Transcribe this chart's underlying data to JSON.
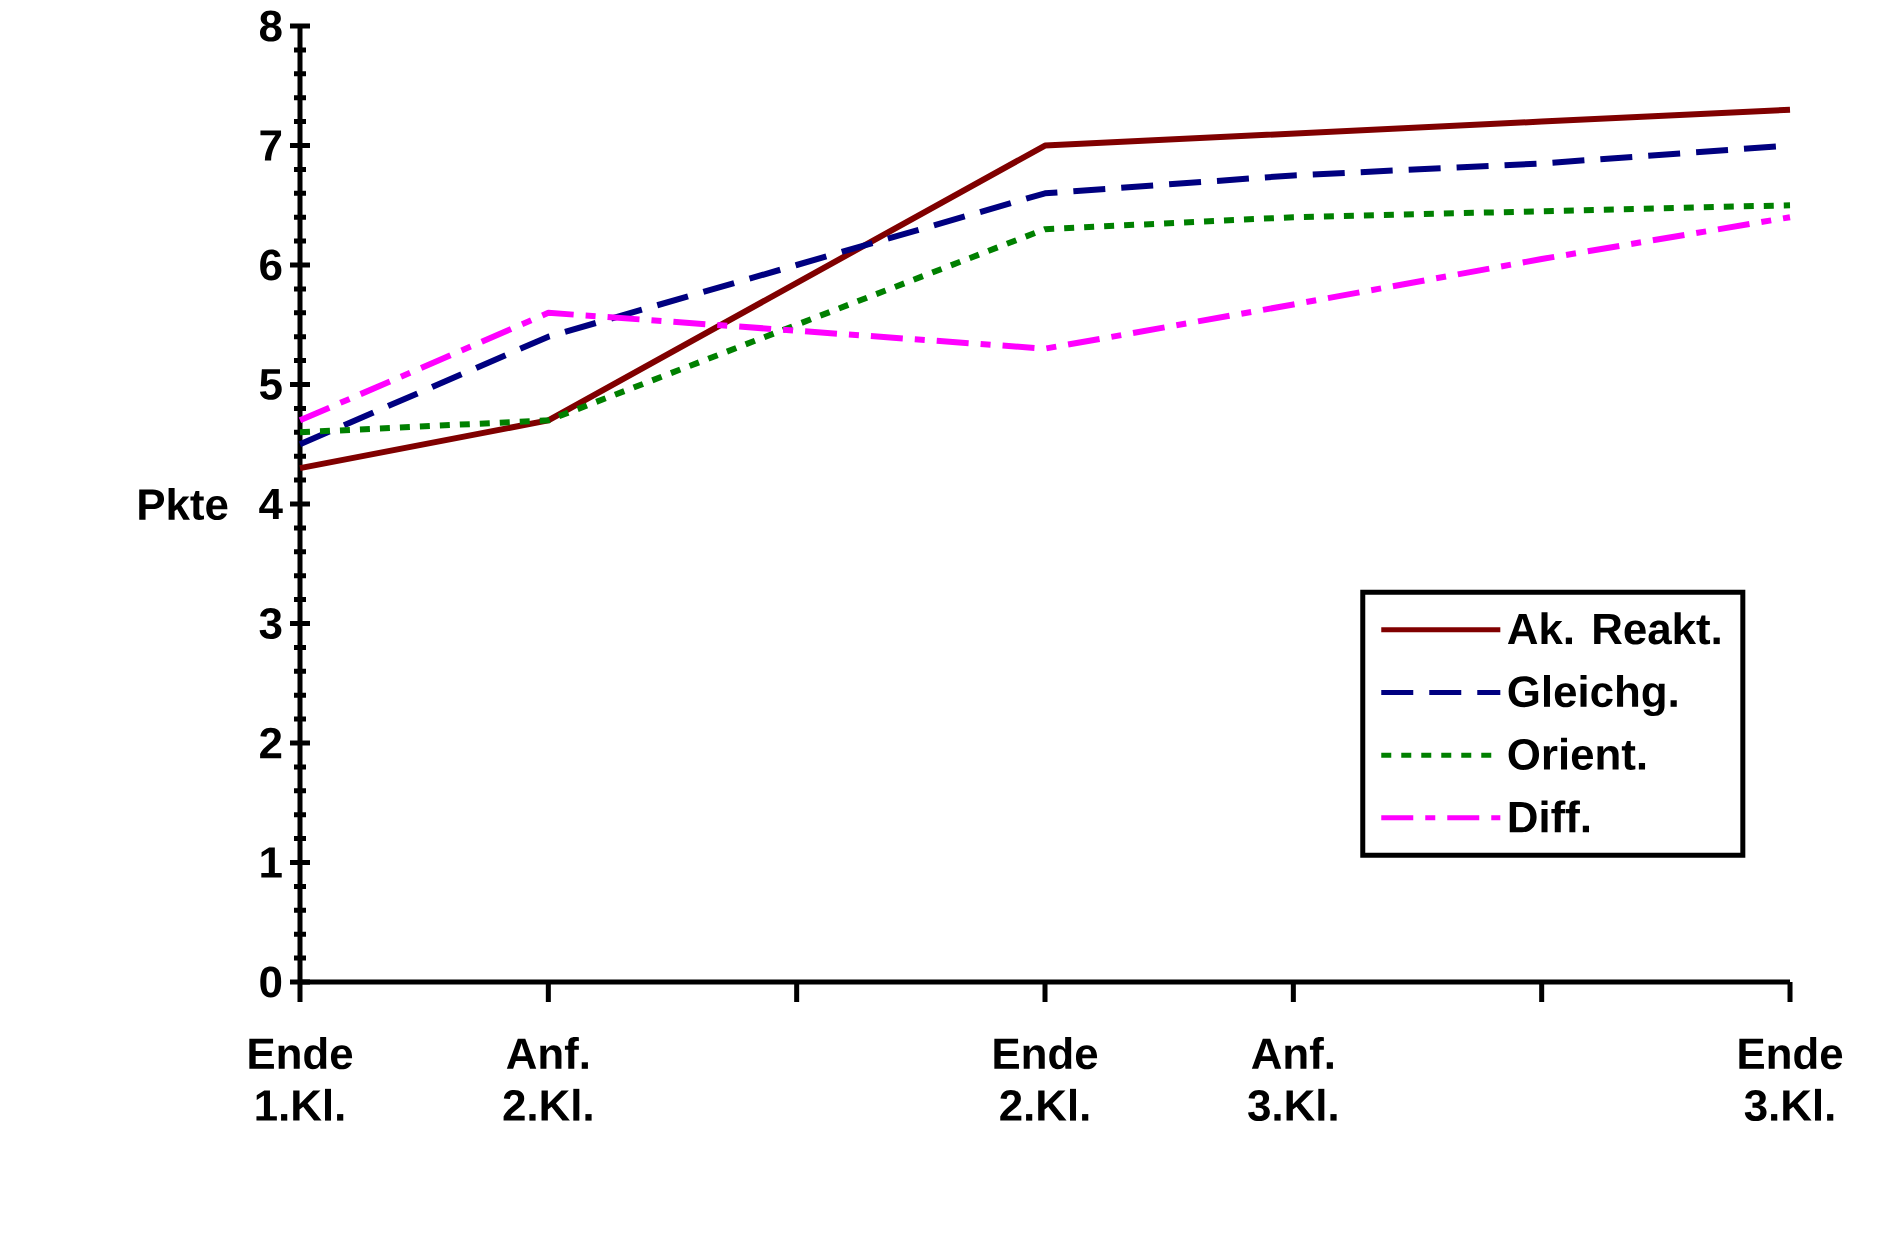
{
  "chart_data": {
    "type": "line",
    "ylabel": "Pkte",
    "categories": [
      "Ende 1.Kl.",
      "Anf. 2.Kl.",
      null,
      "Ende 2.Kl.",
      "Anf. 3.Kl.",
      null,
      "Ende 3.Kl."
    ],
    "ylim": [
      0,
      8
    ],
    "yticks": [
      0,
      1,
      2,
      3,
      4,
      5,
      6,
      7,
      8
    ],
    "grid": false,
    "legend": "right",
    "marker": "none",
    "series": [
      {
        "name": "Ak. Reakt.",
        "color": "#800000",
        "line_style": "solid",
        "values": [
          4.3,
          4.7,
          5.85,
          7.0,
          7.1,
          7.2,
          7.3
        ]
      },
      {
        "name": "Gleichg.",
        "color": "#000080",
        "line_style": "dashed",
        "values": [
          4.5,
          5.4,
          6.0,
          6.6,
          6.75,
          6.85,
          7.0
        ]
      },
      {
        "name": "Orient.",
        "color": "#008000",
        "line_style": "dotted",
        "values": [
          4.6,
          4.7,
          5.5,
          6.3,
          6.4,
          6.45,
          6.5
        ]
      },
      {
        "name": "Diff.",
        "color": "#ff00ff",
        "line_style": "dashdot",
        "values": [
          4.7,
          5.6,
          5.45,
          5.3,
          5.67,
          6.05,
          6.4
        ]
      }
    ]
  }
}
